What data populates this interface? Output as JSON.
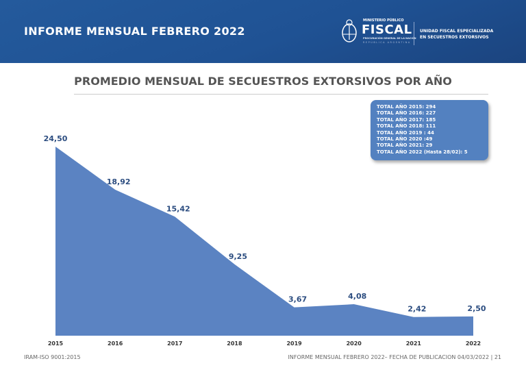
{
  "header": {
    "title": "INFORME MENSUAL FEBRERO 2022",
    "logo": {
      "top": "MINISTERIO PÚBLICO",
      "name": "FISCAL",
      "sub": "PROCURACIÓN GENERAL DE LA NACIÓN",
      "country": "REPÚBLICA ARGENTINA"
    },
    "unit": [
      "UNIDAD FISCAL ESPECIALIZADA",
      "EN SECUESTROS EXTORSIVOS"
    ]
  },
  "totals": [
    "TOTAL AÑO 2015: 294",
    "TOTAL AÑO 2016: 227",
    "TOTAL AÑO 2017: 185",
    "TOTAL AÑO 2018: 111",
    "TOTAL AÑO 2019 : 44",
    "TOTAL AÑO 2020 :49",
    "TOTAL AÑO 2021: 29",
    "TOTAL AÑO 2022 (Hasta 28/02): 5"
  ],
  "chart_data": {
    "type": "area",
    "title": "PROMEDIO MENSUAL DE SECUESTROS EXTORSIVOS POR AÑO",
    "categories": [
      "2015",
      "2016",
      "2017",
      "2018",
      "2019",
      "2020",
      "2021",
      "2022"
    ],
    "values": [
      24.5,
      18.92,
      15.42,
      9.25,
      3.67,
      4.08,
      2.42,
      2.5
    ],
    "labels": [
      "24,50",
      "18,92",
      "15,42",
      "9,25",
      "3,67",
      "4,08",
      "2,42",
      "2,50"
    ],
    "ylim": [
      0,
      24.5
    ],
    "grid": false,
    "colors": {
      "fill": "#5b83c2",
      "label": "#2c4d80"
    }
  },
  "footer": {
    "left": "IRAM-ISO 9001:2015",
    "right": "INFORME MENSUAL FEBRERO 2022– FECHA DE PUBLICACION  04/03/2022 | 21"
  }
}
